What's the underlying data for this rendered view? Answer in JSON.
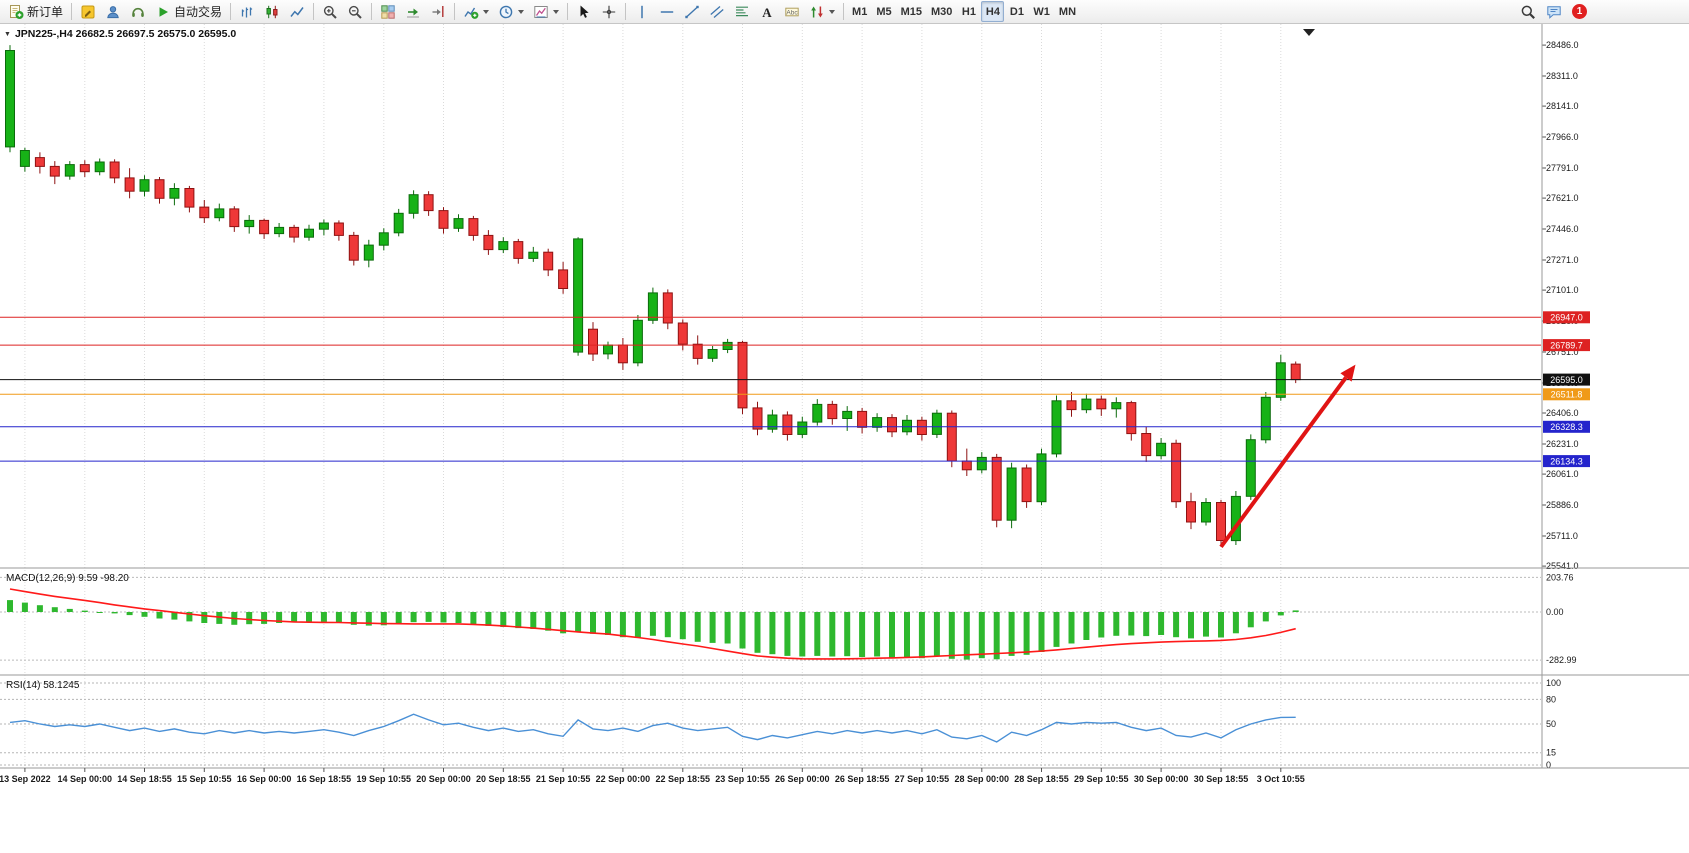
{
  "toolbar": {
    "groups": [
      {
        "items": [
          {
            "name": "new-order-button",
            "icon": "new-order-icon",
            "label": "新订单"
          }
        ]
      },
      {
        "items": [
          {
            "name": "metaeditor-button",
            "icon": "editor-icon"
          },
          {
            "name": "profile-button",
            "icon": "profile-icon"
          },
          {
            "name": "experts-button",
            "icon": "experts-icon"
          },
          {
            "name": "autotrading-button",
            "icon": "play-icon",
            "label": "自动交易"
          }
        ]
      },
      {
        "items": [
          {
            "name": "bar-chart-button",
            "icon": "bars-chart-icon"
          },
          {
            "name": "candlestick-chart-button",
            "icon": "candles-chart-icon"
          },
          {
            "name": "line-chart-button",
            "icon": "line-chart-icon"
          }
        ]
      },
      {
        "items": [
          {
            "name": "zoom-in-button",
            "icon": "zoom-in-icon"
          },
          {
            "name": "zoom-out-button",
            "icon": "zoom-out-icon"
          }
        ]
      },
      {
        "items": [
          {
            "name": "tile-windows-button",
            "icon": "tile-windows-icon"
          },
          {
            "name": "auto-scroll-button",
            "icon": "autoscroll-icon"
          },
          {
            "name": "chart-shift-button",
            "icon": "chart-shift-icon"
          }
        ]
      },
      {
        "items": [
          {
            "name": "indicators-button",
            "icon": "indicators-icon",
            "dropdown": true
          },
          {
            "name": "periods-button",
            "icon": "periods-icon",
            "dropdown": true
          },
          {
            "name": "templates-button",
            "icon": "templates-icon",
            "dropdown": true
          }
        ]
      },
      {
        "items": [
          {
            "name": "cursor-button",
            "icon": "cursor-icon"
          },
          {
            "name": "crosshair-button",
            "icon": "crosshair-icon"
          }
        ]
      },
      {
        "items": [
          {
            "name": "vertical-line-button",
            "icon": "vline-icon"
          },
          {
            "name": "horizontal-line-button",
            "icon": "hline-icon"
          },
          {
            "name": "trendline-button",
            "icon": "trendline-icon"
          },
          {
            "name": "channel-button",
            "icon": "channel-icon"
          },
          {
            "name": "fibonacci-button",
            "icon": "fibonacci-icon"
          },
          {
            "name": "text-button",
            "icon": "text-icon"
          },
          {
            "name": "text-label-button",
            "icon": "label-icon"
          },
          {
            "name": "arrows-button",
            "icon": "arrows-icon",
            "dropdown": true
          }
        ]
      },
      {
        "items": [
          {
            "name": "tf-m1-button",
            "label": "M1",
            "tf": true
          },
          {
            "name": "tf-m5-button",
            "label": "M5",
            "tf": true
          },
          {
            "name": "tf-m15-button",
            "label": "M15",
            "tf": true
          },
          {
            "name": "tf-m30-button",
            "label": "M30",
            "tf": true
          },
          {
            "name": "tf-h1-button",
            "label": "H1",
            "tf": true
          },
          {
            "name": "tf-h4-button",
            "label": "H4",
            "tf": true,
            "active": true
          },
          {
            "name": "tf-d1-button",
            "label": "D1",
            "tf": true
          },
          {
            "name": "tf-w1-button",
            "label": "W1",
            "tf": true
          },
          {
            "name": "tf-mn-button",
            "label": "MN",
            "tf": true
          }
        ]
      }
    ],
    "right_items": [
      {
        "name": "search-button",
        "icon": "search-icon"
      },
      {
        "name": "chat-button",
        "icon": "chat-icon"
      },
      {
        "name": "notifications-button",
        "badge": "1"
      }
    ]
  },
  "chart": {
    "title": "JPN225-,H4 26682.5 26697.5 26575.0 26595.0",
    "symbol": "JPN225-",
    "period": "H4",
    "open": "26682.5",
    "high": "26697.5",
    "low": "26575.0",
    "close": "26595.0"
  },
  "indicators": {
    "macd": {
      "label": "MACD(12,26,9) 9.59 -98.20"
    },
    "rsi": {
      "label": "RSI(14) 58.1245"
    }
  },
  "colors": {
    "candle_up": "#17b217",
    "candle_up_border": "#0b6b0b",
    "candle_down": "#ee3838",
    "candle_down_border": "#8e1212",
    "macd_histogram": "#2eb82e",
    "macd_signal": "#ff1a1a",
    "rsi_line": "#4a90d6",
    "level_red": "#dd2222",
    "level_blue": "#2424cc",
    "level_orange": "#f09a18",
    "level_black": "#111111",
    "arrow": "#e01414"
  },
  "chart_data": [
    {
      "type": "candlestick",
      "title": "JPN225-,H4",
      "x_label_start": 1,
      "x_label_step": 4,
      "x_labels": [
        "13 Sep 2022",
        "14 Sep 00:00",
        "14 Sep 18:55",
        "15 Sep 10:55",
        "16 Sep 00:00",
        "16 Sep 18:55",
        "19 Sep 10:55",
        "20 Sep 00:00",
        "20 Sep 18:55",
        "21 Sep 10:55",
        "22 Sep 00:00",
        "22 Sep 18:55",
        "23 Sep 10:55",
        "26 Sep 00:00",
        "26 Sep 18:55",
        "27 Sep 10:55",
        "28 Sep 00:00",
        "28 Sep 18:55",
        "29 Sep 10:55",
        "30 Sep 00:00",
        "30 Sep 18:55",
        "3 Oct 10:55"
      ],
      "y_ticks": [
        "28486.0",
        "28311.0",
        "28141.0",
        "27966.0",
        "27791.0",
        "27621.0",
        "27446.0",
        "27271.0",
        "27101.0",
        "26926.0",
        "26751.0",
        "26576.0",
        "26406.0",
        "26231.0",
        "26061.0",
        "25886.0",
        "25711.0",
        "25541.0"
      ],
      "y_range": [
        25530,
        28605
      ],
      "candles": [
        [
          27910,
          28486,
          27880,
          28455
        ],
        [
          27800,
          27905,
          27770,
          27890
        ],
        [
          27850,
          27880,
          27760,
          27800
        ],
        [
          27800,
          27830,
          27700,
          27745
        ],
        [
          27745,
          27830,
          27725,
          27810
        ],
        [
          27810,
          27835,
          27740,
          27770
        ],
        [
          27770,
          27845,
          27750,
          27825
        ],
        [
          27825,
          27840,
          27705,
          27735
        ],
        [
          27735,
          27790,
          27620,
          27660
        ],
        [
          27660,
          27750,
          27630,
          27725
        ],
        [
          27725,
          27740,
          27590,
          27620
        ],
        [
          27620,
          27705,
          27580,
          27675
        ],
        [
          27675,
          27690,
          27540,
          27570
        ],
        [
          27570,
          27610,
          27480,
          27510
        ],
        [
          27510,
          27590,
          27490,
          27560
        ],
        [
          27560,
          27575,
          27430,
          27460
        ],
        [
          27460,
          27525,
          27420,
          27495
        ],
        [
          27495,
          27505,
          27390,
          27420
        ],
        [
          27420,
          27480,
          27400,
          27455
        ],
        [
          27455,
          27470,
          27370,
          27400
        ],
        [
          27400,
          27470,
          27380,
          27445
        ],
        [
          27445,
          27500,
          27410,
          27480
        ],
        [
          27480,
          27495,
          27380,
          27410
        ],
        [
          27410,
          27430,
          27240,
          27270
        ],
        [
          27270,
          27385,
          27230,
          27355
        ],
        [
          27355,
          27450,
          27325,
          27425
        ],
        [
          27425,
          27560,
          27405,
          27535
        ],
        [
          27535,
          27665,
          27505,
          27640
        ],
        [
          27640,
          27660,
          27520,
          27550
        ],
        [
          27550,
          27570,
          27420,
          27450
        ],
        [
          27450,
          27530,
          27430,
          27505
        ],
        [
          27505,
          27520,
          27380,
          27410
        ],
        [
          27410,
          27440,
          27300,
          27330
        ],
        [
          27330,
          27400,
          27310,
          27375
        ],
        [
          27375,
          27390,
          27250,
          27280
        ],
        [
          27280,
          27345,
          27260,
          27315
        ],
        [
          27315,
          27335,
          27180,
          27215
        ],
        [
          27215,
          27260,
          27080,
          27110
        ],
        [
          26750,
          27400,
          26730,
          27390
        ],
        [
          26880,
          26920,
          26700,
          26740
        ],
        [
          26740,
          26810,
          26710,
          26790
        ],
        [
          26790,
          26830,
          26650,
          26690
        ],
        [
          26690,
          26960,
          26670,
          26930
        ],
        [
          26930,
          27115,
          26910,
          27085
        ],
        [
          27085,
          27105,
          26880,
          26915
        ],
        [
          26915,
          26935,
          26760,
          26795
        ],
        [
          26795,
          26845,
          26680,
          26715
        ],
        [
          26715,
          26785,
          26695,
          26765
        ],
        [
          26765,
          26825,
          26745,
          26805
        ],
        [
          26805,
          26815,
          26400,
          26435
        ],
        [
          26435,
          26470,
          26280,
          26315
        ],
        [
          26315,
          26425,
          26295,
          26395
        ],
        [
          26395,
          26415,
          26250,
          26285
        ],
        [
          26285,
          26385,
          26265,
          26355
        ],
        [
          26355,
          26485,
          26335,
          26455
        ],
        [
          26455,
          26475,
          26340,
          26375
        ],
        [
          26375,
          26445,
          26305,
          26415
        ],
        [
          26415,
          26435,
          26290,
          26325
        ],
        [
          26325,
          26405,
          26300,
          26380
        ],
        [
          26380,
          26400,
          26270,
          26300
        ],
        [
          26300,
          26395,
          26280,
          26365
        ],
        [
          26365,
          26385,
          26250,
          26285
        ],
        [
          26285,
          26425,
          26265,
          26405
        ],
        [
          26405,
          26420,
          26100,
          26135
        ],
        [
          26135,
          26205,
          26050,
          26085
        ],
        [
          26085,
          26185,
          26065,
          26155
        ],
        [
          26155,
          26175,
          25760,
          25800
        ],
        [
          25800,
          26125,
          25755,
          26095
        ],
        [
          26095,
          26115,
          25870,
          25905
        ],
        [
          25905,
          26205,
          25885,
          26175
        ],
        [
          26175,
          26505,
          26155,
          26475
        ],
        [
          26475,
          26525,
          26385,
          26425
        ],
        [
          26425,
          26515,
          26405,
          26485
        ],
        [
          26485,
          26505,
          26390,
          26430
        ],
        [
          26430,
          26495,
          26380,
          26465
        ],
        [
          26465,
          26475,
          26250,
          26290
        ],
        [
          26290,
          26330,
          26130,
          26165
        ],
        [
          26165,
          26265,
          26145,
          26235
        ],
        [
          26235,
          26255,
          25870,
          25905
        ],
        [
          25905,
          25955,
          25750,
          25790
        ],
        [
          25790,
          25925,
          25770,
          25900
        ],
        [
          25900,
          25915,
          25650,
          25685
        ],
        [
          25685,
          25965,
          25660,
          25935
        ],
        [
          25935,
          26285,
          25915,
          26255
        ],
        [
          26255,
          26525,
          26235,
          26495
        ],
        [
          26495,
          26735,
          26475,
          26690
        ],
        [
          26682.5,
          26697.5,
          26575.0,
          26595.0
        ]
      ],
      "levels": [
        {
          "price": 26947.0,
          "label": "26947.0",
          "color": "#dd2222"
        },
        {
          "price": 26789.7,
          "label": "26789.7",
          "color": "#dd2222"
        },
        {
          "price": 26595.0,
          "label": "26595.0",
          "color": "#111111"
        },
        {
          "price": 26511.8,
          "label": "26511.8",
          "color": "#f09a18"
        },
        {
          "price": 26328.3,
          "label": "26328.3",
          "color": "#2424cc"
        },
        {
          "price": 26134.3,
          "label": "26134.3",
          "color": "#2424cc"
        }
      ],
      "arrow": {
        "from_candle": 81,
        "from_price": 25650,
        "to_candle": 90,
        "to_price": 26680,
        "color": "#e01414"
      }
    },
    {
      "type": "bar",
      "name": "MACD(12,26,9)",
      "last_values": "9.59 -98.20",
      "scale_ticks": [
        {
          "v": 203.76,
          "label": "203.76"
        },
        {
          "v": 0,
          "label": "0.00"
        },
        {
          "v": -282.99,
          "label": "-282.99"
        }
      ],
      "histogram": [
        70,
        55,
        40,
        28,
        18,
        8,
        0,
        -8,
        -18,
        -28,
        -38,
        -45,
        -55,
        -65,
        -70,
        -75,
        -72,
        -70,
        -65,
        -62,
        -60,
        -58,
        -62,
        -75,
        -80,
        -78,
        -70,
        -60,
        -58,
        -62,
        -65,
        -72,
        -82,
        -88,
        -95,
        -100,
        -110,
        -125,
        -118,
        -128,
        -135,
        -148,
        -150,
        -140,
        -148,
        -160,
        -175,
        -182,
        -185,
        -215,
        -240,
        -248,
        -258,
        -262,
        -258,
        -262,
        -260,
        -265,
        -262,
        -268,
        -265,
        -272,
        -262,
        -275,
        -280,
        -272,
        -278,
        -258,
        -252,
        -235,
        -205,
        -185,
        -165,
        -150,
        -140,
        -138,
        -142,
        -135,
        -148,
        -155,
        -145,
        -150,
        -125,
        -90,
        -55,
        -20,
        9.59
      ],
      "signal": [
        135,
        120,
        105,
        92,
        80,
        68,
        55,
        42,
        30,
        18,
        8,
        -2,
        -12,
        -22,
        -30,
        -38,
        -44,
        -50,
        -54,
        -58,
        -60,
        -61,
        -62,
        -64,
        -66,
        -68,
        -69,
        -70,
        -70,
        -70,
        -70,
        -73,
        -77,
        -82,
        -88,
        -95,
        -102,
        -110,
        -117,
        -124,
        -130,
        -140,
        -150,
        -162,
        -175,
        -188,
        -200,
        -215,
        -230,
        -245,
        -258,
        -266,
        -272,
        -275,
        -276,
        -276,
        -275,
        -274,
        -272,
        -270,
        -267,
        -264,
        -260,
        -256,
        -252,
        -248,
        -244,
        -240,
        -236,
        -230,
        -223,
        -215,
        -207,
        -199,
        -192,
        -186,
        -181,
        -177,
        -174,
        -172,
        -170,
        -167,
        -162,
        -152,
        -138,
        -120,
        -98.2
      ]
    },
    {
      "type": "line",
      "name": "RSI(14)",
      "last_value": 58.1245,
      "y_range": [
        0,
        100
      ],
      "level_ticks": [
        {
          "v": 100,
          "label": "100"
        },
        {
          "v": 80,
          "label": "80"
        },
        {
          "v": 50,
          "label": "50"
        },
        {
          "v": 15,
          "label": "15"
        },
        {
          "v": 0,
          "label": "0"
        }
      ],
      "values": [
        52,
        54,
        50,
        47,
        49,
        47,
        50,
        46,
        42,
        45,
        41,
        44,
        40,
        38,
        42,
        39,
        42,
        39,
        41,
        39,
        41,
        43,
        40,
        36,
        42,
        47,
        54,
        62,
        55,
        49,
        51,
        46,
        42,
        45,
        41,
        43,
        38,
        35,
        55,
        44,
        42,
        45,
        41,
        48,
        51,
        45,
        42,
        44,
        46,
        35,
        31,
        36,
        33,
        37,
        41,
        38,
        42,
        39,
        42,
        39,
        42,
        38,
        43,
        34,
        32,
        36,
        28,
        40,
        36,
        43,
        52,
        50,
        52,
        51,
        52,
        46,
        42,
        45,
        36,
        34,
        39,
        33,
        43,
        50,
        55,
        58,
        58.1245
      ]
    }
  ]
}
